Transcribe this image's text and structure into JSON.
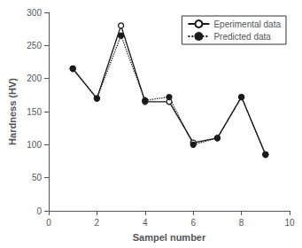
{
  "chart_data": {
    "type": "line",
    "x": [
      1,
      2,
      3,
      4,
      5,
      6,
      7,
      8,
      9
    ],
    "series": [
      {
        "name": "Eperimental data",
        "color": "#1a1a1a",
        "values": [
          215,
          170,
          280,
          165,
          165,
          103,
          110,
          172,
          85
        ],
        "line_style": "solid",
        "marker": "open_circle"
      },
      {
        "name": "Predicted data",
        "color": "#1a1a1a",
        "values": [
          215,
          170,
          265,
          167,
          172,
          100,
          110,
          172,
          85
        ],
        "line_style": "dotted",
        "marker": "circle"
      }
    ],
    "xlabel": "Sampel number",
    "ylabel": "Hardness (HV)",
    "xlim": [
      0,
      10
    ],
    "xticks": [
      0,
      2,
      4,
      6,
      8,
      10
    ],
    "ylim": [
      0,
      300
    ],
    "yticks": [
      0,
      50,
      100,
      150,
      200,
      250,
      300
    ],
    "grid": false,
    "legend": "upper right"
  }
}
